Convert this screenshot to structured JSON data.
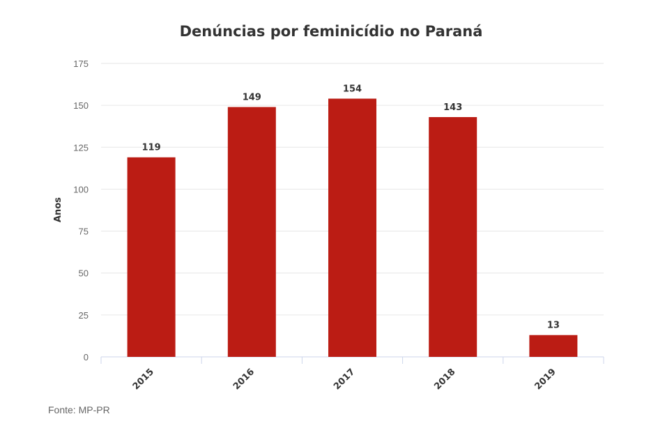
{
  "chart_data": {
    "type": "bar",
    "title": "Denúncias por feminicídio no Paraná",
    "xlabel": "",
    "ylabel": "Anos",
    "categories": [
      "2015",
      "2016",
      "2017",
      "2018",
      "2019"
    ],
    "values": [
      119,
      149,
      154,
      143,
      13
    ],
    "data_labels": [
      "119",
      "149",
      "154",
      "143",
      "13"
    ],
    "yticks": [
      0,
      25,
      50,
      75,
      100,
      125,
      150,
      175
    ],
    "ylim": [
      0,
      175
    ],
    "grid": true,
    "legend": "none",
    "bar_color": "#bb1c14"
  },
  "source": "Fonte: MP-PR"
}
